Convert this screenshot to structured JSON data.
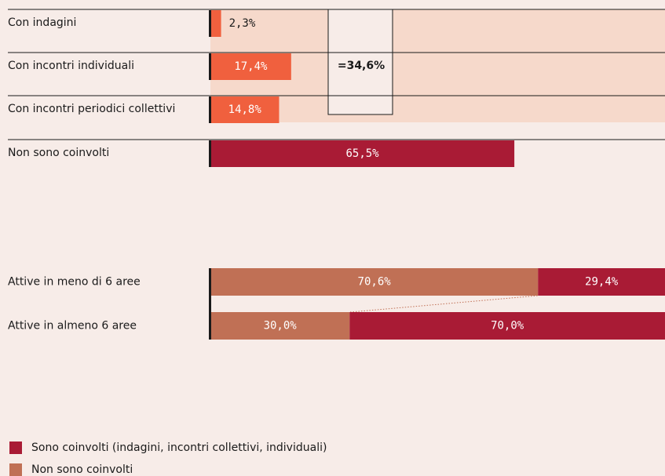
{
  "chart_data": [
    {
      "type": "bar",
      "orientation": "horizontal",
      "categories": [
        "Con indagini",
        "Con incontri individuali",
        "Con incontri periodici collettivi",
        "Non sono coinvolti"
      ],
      "values": [
        2.3,
        17.4,
        14.8,
        65.5
      ],
      "value_labels": [
        "2,3%",
        "17,4%",
        "14,8%",
        "65,5%"
      ],
      "colors": [
        "#f0603e",
        "#f0603e",
        "#f0603e",
        "#a91b35"
      ],
      "annotation": "=34,6%",
      "xlim": [
        0,
        100
      ]
    },
    {
      "type": "stacked_bar",
      "orientation": "horizontal",
      "categories": [
        "Attive in meno di 6 aree",
        "Attive in almeno 6 aree"
      ],
      "series": [
        {
          "name": "Non sono coinvolti",
          "color": "#c07055",
          "values": [
            70.6,
            30.0
          ],
          "value_labels": [
            "70,6%",
            "30,0%"
          ]
        },
        {
          "name": "Sono coinvolti (indagini, incontri collettivi, individuali)",
          "color": "#a91b35",
          "values": [
            29.4,
            70.0
          ],
          "value_labels": [
            "29,4%",
            "70,0%"
          ]
        }
      ],
      "xlim": [
        0,
        100
      ]
    }
  ]
}
